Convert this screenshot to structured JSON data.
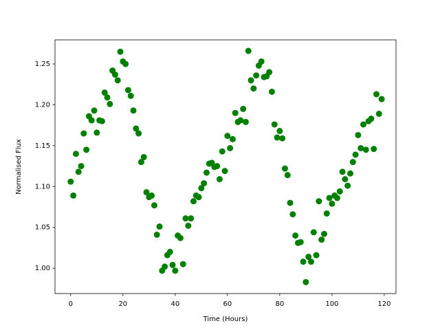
{
  "chart_data": {
    "type": "scatter",
    "x_label": "Time (Hours)",
    "y_label": "Normalised Flux",
    "x": [
      0,
      1,
      2,
      3,
      4,
      5,
      6,
      7,
      8,
      9,
      10,
      11,
      12,
      13,
      14,
      15,
      16,
      17,
      18,
      19,
      20,
      21,
      22,
      23,
      24,
      25,
      26,
      27,
      28,
      29,
      30,
      31,
      32,
      33,
      34,
      35,
      36,
      37,
      38,
      39,
      40,
      41,
      42,
      43,
      44,
      45,
      46,
      47,
      48,
      49,
      50,
      51,
      52,
      53,
      54,
      55,
      56,
      57,
      58,
      59,
      60,
      61,
      62,
      63,
      64,
      65,
      66,
      67,
      68,
      69,
      70,
      71,
      72,
      73,
      74,
      75,
      76,
      77,
      78,
      79,
      80,
      81,
      82,
      83,
      84,
      85,
      86,
      87,
      88,
      89,
      90,
      91,
      92,
      93,
      94,
      95,
      96,
      97,
      98,
      99,
      100,
      101,
      102,
      103,
      104,
      105,
      106,
      107,
      108,
      109,
      110,
      111,
      112,
      113,
      114,
      115,
      116,
      117,
      118,
      119
    ],
    "values": [
      1.106,
      1.089,
      1.14,
      1.118,
      1.125,
      1.165,
      1.145,
      1.186,
      1.181,
      1.193,
      1.166,
      1.181,
      1.18,
      1.215,
      1.209,
      1.201,
      1.242,
      1.237,
      1.23,
      1.265,
      1.253,
      1.25,
      1.218,
      1.211,
      1.193,
      1.171,
      1.165,
      1.13,
      1.136,
      1.093,
      1.087,
      1.089,
      1.077,
      1.041,
      1.051,
      0.997,
      1.002,
      1.016,
      1.02,
      1.004,
      0.997,
      1.04,
      1.037,
      1.005,
      1.061,
      1.052,
      1.061,
      1.082,
      1.089,
      1.087,
      1.098,
      1.104,
      1.117,
      1.128,
      1.129,
      1.124,
      1.125,
      1.109,
      1.143,
      1.119,
      1.162,
      1.147,
      1.158,
      1.19,
      1.179,
      1.181,
      1.195,
      1.179,
      1.266,
      1.23,
      1.22,
      1.236,
      1.248,
      1.253,
      1.234,
      1.235,
      1.24,
      1.216,
      1.176,
      1.16,
      1.168,
      1.159,
      1.122,
      1.114,
      1.08,
      1.066,
      1.04,
      1.031,
      1.032,
      1.008,
      0.983,
      1.014,
      1.008,
      1.044,
      1.016,
      1.082,
      1.035,
      1.042,
      1.067,
      1.086,
      1.079,
      1.089,
      1.086,
      1.094,
      1.118,
      1.109,
      1.101,
      1.116,
      1.13,
      1.139,
      1.163,
      1.147,
      1.176,
      1.145,
      1.18,
      1.183,
      1.146,
      1.213,
      1.189,
      1.207
    ],
    "color": "#008000",
    "xlim": [
      -6,
      124.5
    ],
    "ylim": [
      0.969,
      1.2795
    ],
    "xticks": [
      0,
      20,
      40,
      60,
      80,
      100,
      120
    ],
    "yticks": [
      {
        "value": 1.0,
        "label": "1.00"
      },
      {
        "value": 1.05,
        "label": "1.05"
      },
      {
        "value": 1.1,
        "label": "1.10"
      },
      {
        "value": 1.15,
        "label": "1.15"
      },
      {
        "value": 1.2,
        "label": "1.20"
      },
      {
        "value": 1.25,
        "label": "1.25"
      }
    ]
  }
}
